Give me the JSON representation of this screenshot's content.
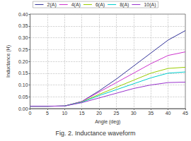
{
  "chart_data": {
    "type": "line",
    "title": "Fig. 2. Inductance waveform",
    "x_label": "Angle (deg)",
    "y_label": "Inductance (H)",
    "x": [
      0,
      5,
      10,
      15,
      20,
      25,
      30,
      35,
      40,
      45
    ],
    "series": [
      {
        "name": "2(A)",
        "color": "#333399",
        "values": [
          0.01,
          0.01,
          0.011,
          0.03,
          0.075,
          0.125,
          0.18,
          0.235,
          0.29,
          0.33
        ]
      },
      {
        "name": "4(A)",
        "color": "#cc33cc",
        "values": [
          0.01,
          0.01,
          0.011,
          0.03,
          0.07,
          0.11,
          0.15,
          0.19,
          0.225,
          0.24
        ]
      },
      {
        "name": "6(A)",
        "color": "#99cc00",
        "values": [
          0.01,
          0.01,
          0.011,
          0.028,
          0.06,
          0.09,
          0.12,
          0.15,
          0.17,
          0.175
        ]
      },
      {
        "name": "8(A)",
        "color": "#00cccc",
        "values": [
          0.01,
          0.01,
          0.011,
          0.027,
          0.055,
          0.08,
          0.105,
          0.13,
          0.15,
          0.155
        ]
      },
      {
        "name": "10(A)",
        "color": "#9933cc",
        "values": [
          0.01,
          0.01,
          0.011,
          0.025,
          0.045,
          0.065,
          0.085,
          0.1,
          0.11,
          0.112
        ]
      }
    ],
    "xlim": [
      0,
      45
    ],
    "xticks": [
      0,
      5,
      10,
      15,
      20,
      25,
      30,
      35,
      40,
      45
    ],
    "ylim": [
      0,
      0.4
    ],
    "yticks": [
      {
        "value": 0,
        "label": "0.00"
      },
      {
        "value": 0.05,
        "label": "0.05"
      },
      {
        "value": 0.1,
        "label": "0.10"
      },
      {
        "value": 0.15,
        "label": "0.15"
      },
      {
        "value": 0.2,
        "label": "0.20"
      },
      {
        "value": 0.25,
        "label": "0.25"
      },
      {
        "value": 0.3,
        "label": "0.30"
      },
      {
        "value": 0.35,
        "label": "0.35"
      },
      {
        "value": 0.4,
        "label": "0.40"
      }
    ],
    "grid": true,
    "legend": "top",
    "marker": "none"
  }
}
